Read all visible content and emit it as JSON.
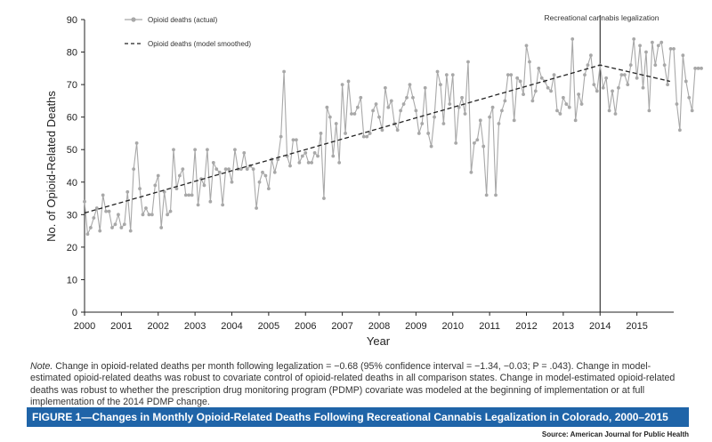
{
  "chart_data": {
    "type": "line",
    "ylabel": "No. of Opioid-Related Deaths",
    "xlabel": "Year",
    "ylim": [
      0,
      90
    ],
    "yticks": [
      0,
      10,
      20,
      30,
      40,
      50,
      60,
      70,
      80,
      90
    ],
    "xlim": [
      2000,
      2016
    ],
    "xticks": [
      "2000",
      "2001",
      "2002",
      "2003",
      "2004",
      "2005",
      "2006",
      "2007",
      "2008",
      "2009",
      "2010",
      "2011",
      "2012",
      "2013",
      "2014",
      "2015"
    ],
    "legal_line": {
      "x": 2014,
      "label": "Recreational cannabis legalization"
    },
    "series": [
      {
        "name": "Opioid deaths (actual)",
        "style": "markers",
        "color": "#a8a8a8",
        "start_year": 2000,
        "step": 0.083333,
        "values": [
          34,
          24,
          26,
          29,
          32,
          25,
          36,
          31,
          31,
          26,
          27,
          30,
          26,
          27,
          37,
          25,
          44,
          52,
          38,
          30,
          32,
          30,
          30,
          39,
          42,
          26,
          37,
          30,
          31,
          50,
          38,
          42,
          44,
          36,
          36,
          36,
          50,
          33,
          41,
          39,
          50,
          34,
          46,
          44,
          43,
          33,
          44,
          44,
          40,
          50,
          44,
          44,
          49,
          44,
          45,
          44,
          32,
          40,
          43,
          42,
          38,
          47,
          43,
          47,
          54,
          74,
          48,
          45,
          53,
          53,
          46,
          48,
          49,
          46,
          46,
          49,
          48,
          55,
          35,
          63,
          60,
          48,
          58,
          46,
          70,
          55,
          71,
          61,
          61,
          63,
          66,
          54,
          54,
          55,
          62,
          64,
          60,
          56,
          69,
          63,
          65,
          58,
          56,
          62,
          64,
          66,
          70,
          66,
          62,
          55,
          58,
          69,
          55,
          51,
          60,
          74,
          70,
          58,
          73,
          64,
          73,
          52,
          63,
          66,
          61,
          77,
          43,
          52,
          53,
          59,
          51,
          36,
          60,
          63,
          36,
          58,
          62,
          65,
          73,
          73,
          59,
          72,
          71,
          67,
          82,
          77,
          65,
          68,
          75,
          72,
          71,
          69,
          68,
          73,
          62,
          61,
          66,
          64,
          63,
          84,
          59,
          67,
          64,
          73,
          76,
          79,
          70,
          68,
          76,
          69,
          72,
          62,
          68,
          61,
          69,
          73,
          73,
          70,
          76,
          84,
          72,
          82,
          69,
          80,
          62,
          83,
          76,
          82,
          83,
          76,
          70,
          81,
          81,
          64,
          56,
          79,
          71,
          66,
          62,
          75,
          75,
          75
        ]
      },
      {
        "name": "Opioid deaths (model smoothed)",
        "style": "dashed",
        "color": "#222222",
        "points": [
          [
            2000,
            30.5
          ],
          [
            2014,
            76
          ],
          [
            2015.9,
            71
          ]
        ]
      }
    ]
  },
  "note": {
    "label": "Note.",
    "text": "Change in opioid-related deaths per month following legalization = −0.68 (95% confidence interval = −1.34, −0.03; P = .043). Change in model-estimated opioid-related deaths was robust to covariate control of opioid-related deaths in all comparison states. Change in model-estimated opioid-related deaths was robust to whether the prescription drug monitoring program (PDMP) covariate was modeled at the beginning of implementation or at full implementation of the 2014 PDMP change."
  },
  "figure_caption": "FIGURE 1—Changes in Monthly Opioid-Related Deaths Following Recreational Cannabis Legalization in Colorado, 2000–2015",
  "source": "Source: American Journal for Public Health"
}
